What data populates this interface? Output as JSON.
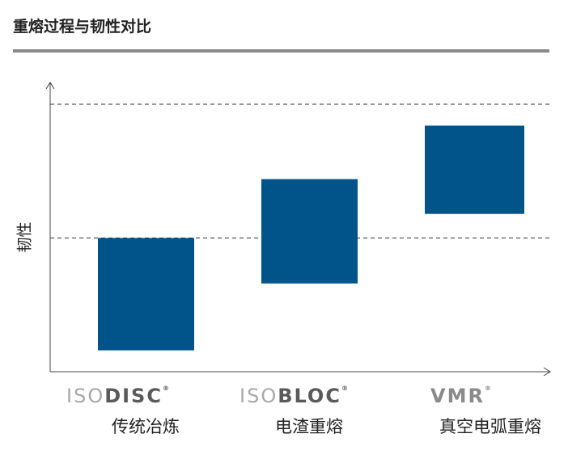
{
  "chart_data": {
    "type": "floating-bar",
    "title": "重熔过程与韧性对比",
    "xlabel": "",
    "ylabel": "韧性",
    "ylim": [
      0,
      110
    ],
    "grid": false,
    "reference_lines": [
      50,
      100
    ],
    "categories": [
      "传统冶炼",
      "电渣重熔",
      "真空电弧重熔"
    ],
    "logos": [
      {
        "light": "ISO",
        "bold": "DISC",
        "mark": "®"
      },
      {
        "light": "ISO",
        "bold": "BLOC",
        "mark": "®"
      },
      {
        "light": "",
        "bold": "VMR",
        "mark": "®"
      }
    ],
    "ranges": [
      [
        8,
        50
      ],
      [
        33,
        72
      ],
      [
        59,
        92
      ]
    ],
    "bar_color": "#00548a"
  }
}
